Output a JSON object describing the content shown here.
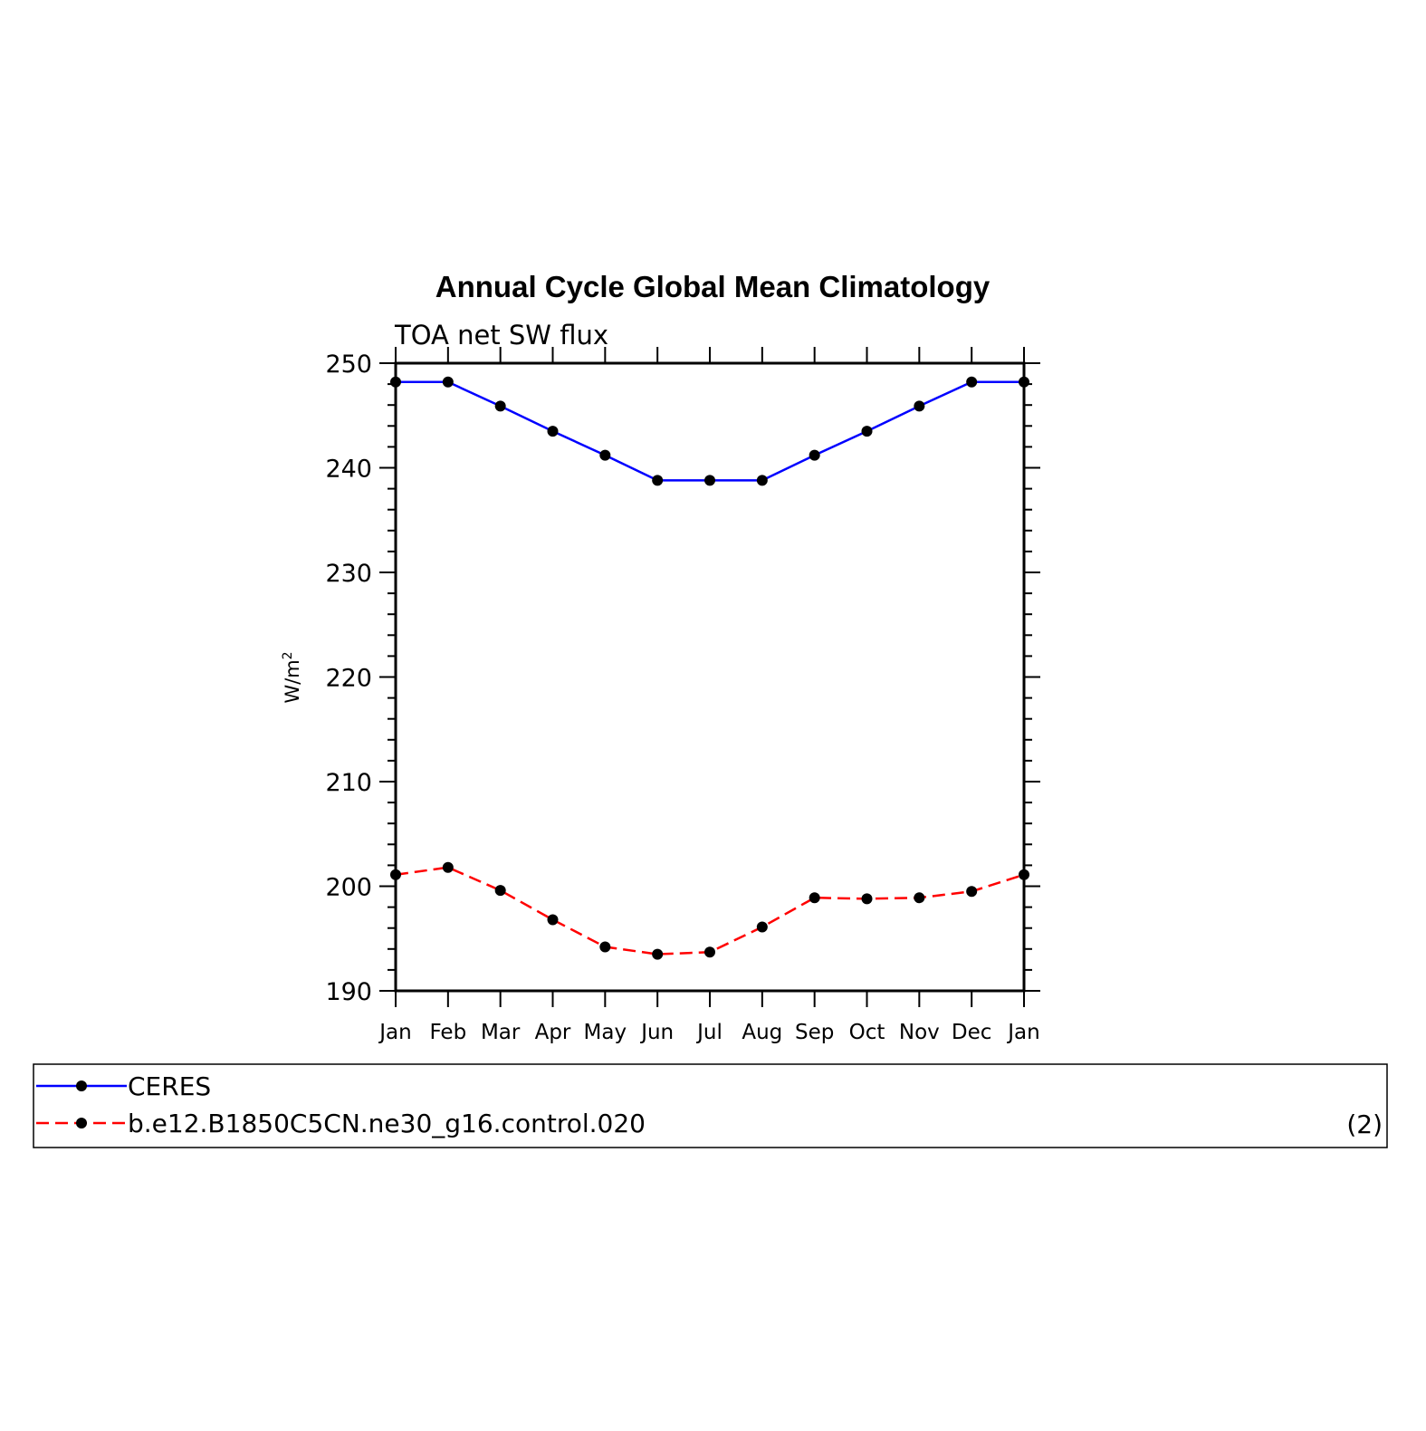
{
  "chart_data": {
    "type": "line",
    "title": "Annual Cycle Global Mean Climatology",
    "subtitle": "TOA  net  SW  flux",
    "ylabel": "W/m",
    "ylabel_superscript": "2",
    "ylim": [
      190,
      250
    ],
    "yticks": [
      190,
      200,
      210,
      220,
      230,
      240,
      250
    ],
    "ytick_labels": [
      "190",
      "200",
      "210",
      "220",
      "230",
      "240",
      "250"
    ],
    "categories": [
      "Jan",
      "Feb",
      "Mar",
      "Apr",
      "May",
      "Jun",
      "Jul",
      "Aug",
      "Sep",
      "Oct",
      "Nov",
      "Dec",
      "Jan"
    ],
    "grid": false,
    "legend_position": "bottom",
    "series": [
      {
        "name": "CERES",
        "color": "#0000ff",
        "dash": "solid",
        "values": [
          248.2,
          248.2,
          245.9,
          243.5,
          241.2,
          238.8,
          238.8,
          238.8,
          241.2,
          243.5,
          245.9,
          248.2,
          248.2
        ]
      },
      {
        "name": "b.e12.B1850C5CN.ne30_g16.control.020",
        "color": "#ff0000",
        "dash": "dashed",
        "values": [
          201.1,
          201.8,
          199.6,
          196.8,
          194.2,
          193.5,
          193.7,
          196.1,
          198.9,
          198.8,
          198.9,
          199.5,
          201.1
        ]
      }
    ],
    "panel_tag": "(2)"
  }
}
